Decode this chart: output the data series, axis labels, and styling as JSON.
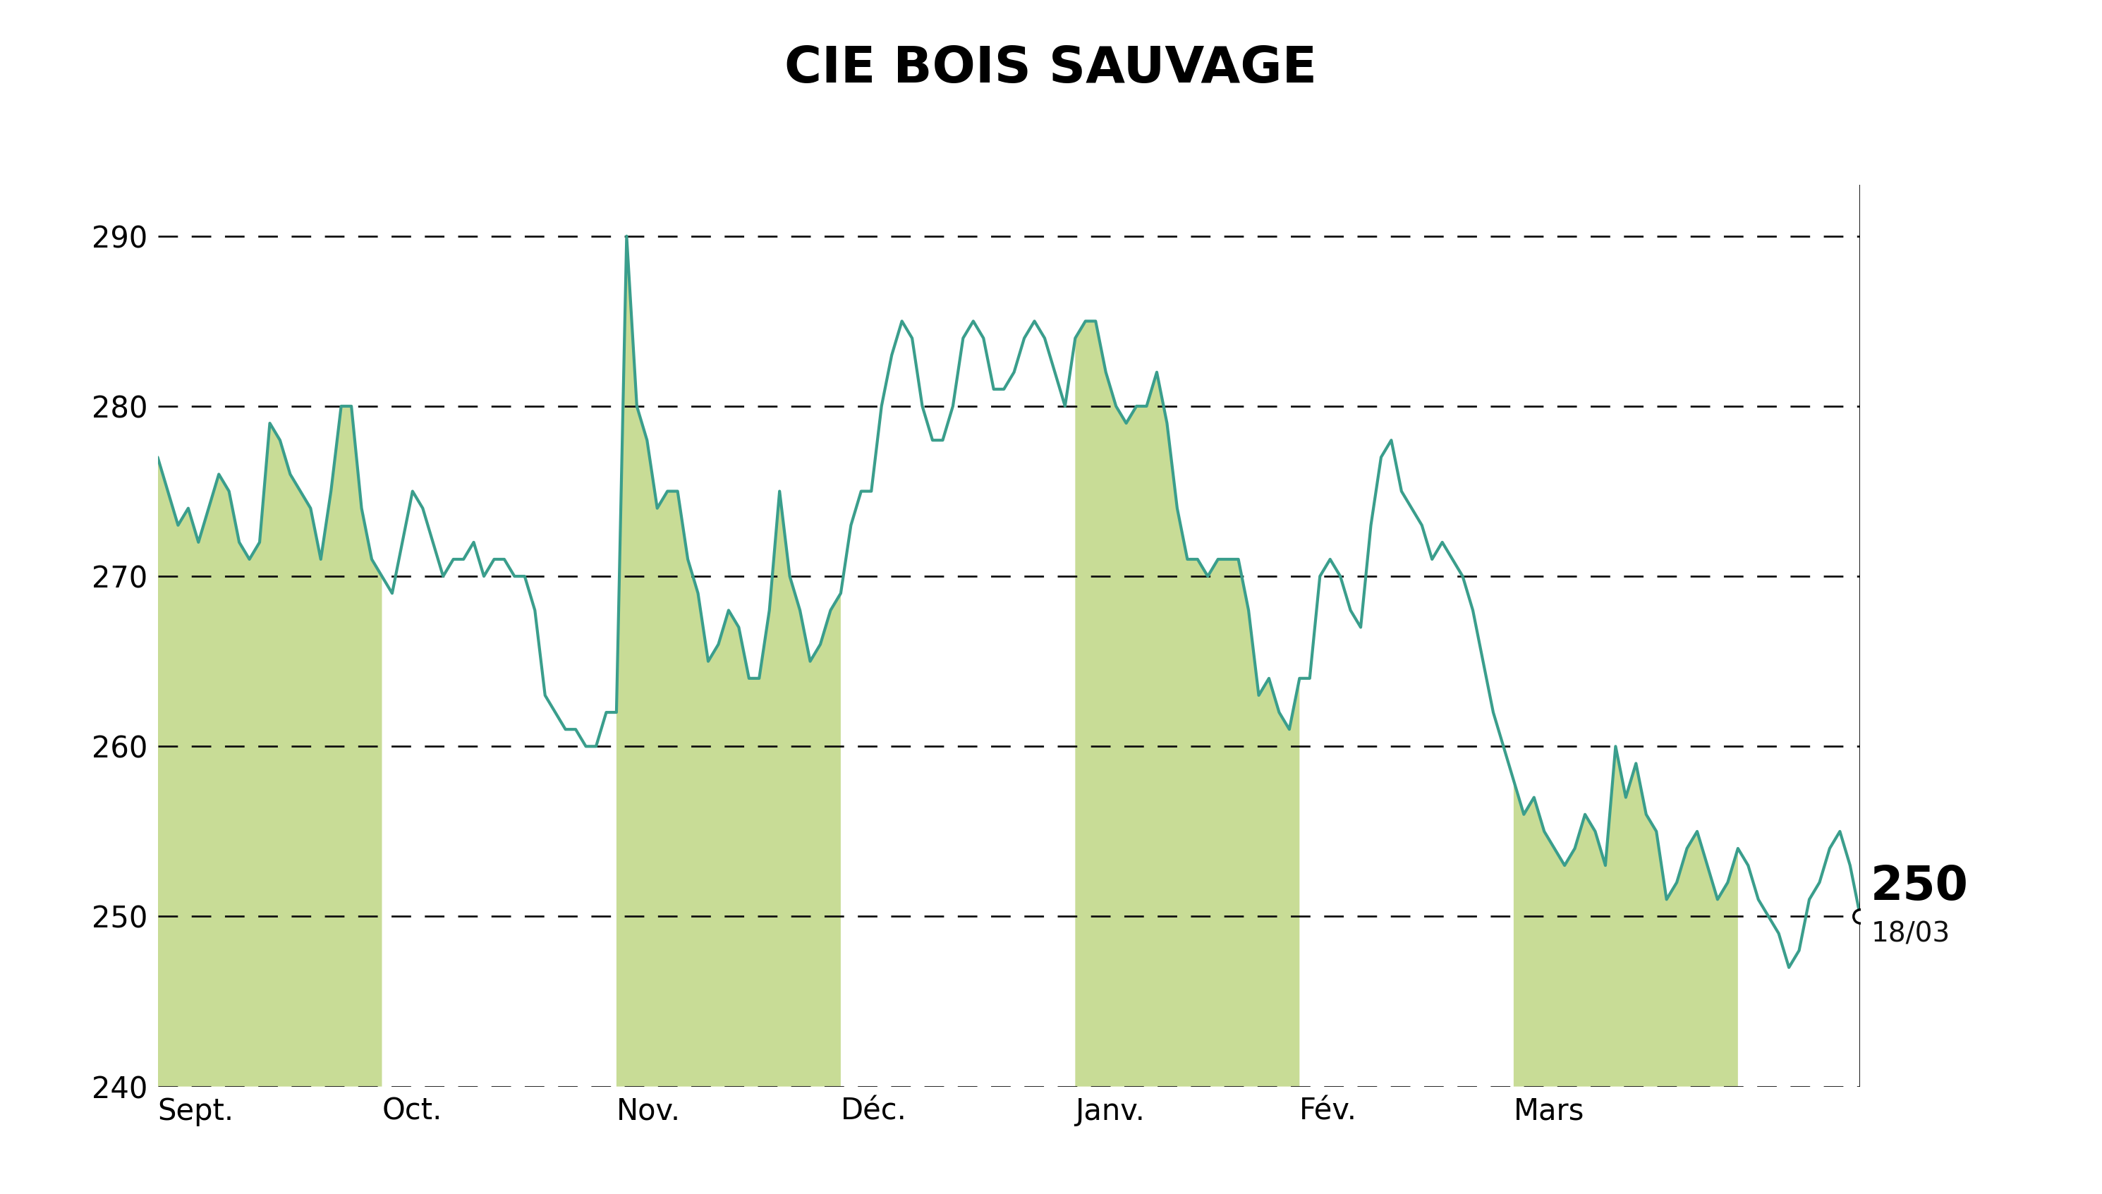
{
  "title": "CIE BOIS SAUVAGE",
  "title_bg_color": "#c8dc96",
  "plot_bg_color": "#ffffff",
  "line_color": "#3a9e8c",
  "fill_color": "#c8dc96",
  "grid_color": "#111111",
  "ylim": [
    240,
    293
  ],
  "yticks": [
    240,
    250,
    260,
    270,
    280,
    290
  ],
  "month_labels": [
    "Sept.",
    "Oct.",
    "Nov.",
    "Déc.",
    "Janv.",
    "Fév.",
    "Mars"
  ],
  "last_value": 250,
  "last_date": "18/03",
  "line_width": 3.0,
  "prices": [
    277,
    275,
    273,
    274,
    272,
    274,
    276,
    275,
    272,
    271,
    272,
    279,
    278,
    276,
    275,
    274,
    271,
    275,
    280,
    280,
    274,
    271,
    270,
    269,
    272,
    275,
    274,
    272,
    270,
    271,
    271,
    272,
    270,
    271,
    271,
    270,
    270,
    268,
    263,
    262,
    261,
    261,
    260,
    260,
    262,
    262,
    290,
    280,
    278,
    274,
    275,
    275,
    271,
    269,
    265,
    266,
    268,
    267,
    264,
    264,
    268,
    275,
    270,
    268,
    265,
    266,
    268,
    269,
    273,
    275,
    275,
    280,
    283,
    285,
    284,
    280,
    278,
    278,
    280,
    284,
    285,
    284,
    281,
    281,
    282,
    284,
    285,
    284,
    282,
    280,
    284,
    285,
    285,
    282,
    280,
    279,
    280,
    280,
    282,
    279,
    274,
    271,
    271,
    270,
    271,
    271,
    271,
    268,
    263,
    264,
    262,
    261,
    264,
    264,
    270,
    271,
    270,
    268,
    267,
    273,
    277,
    278,
    275,
    274,
    273,
    271,
    272,
    271,
    270,
    268,
    265,
    262,
    260,
    258,
    256,
    257,
    255,
    254,
    253,
    254,
    256,
    255,
    253,
    260,
    257,
    259,
    256,
    255,
    251,
    252,
    254,
    255,
    253,
    251,
    252,
    254,
    253,
    251,
    250,
    249,
    247,
    248,
    251,
    252,
    254,
    255,
    253,
    250
  ],
  "month_boundaries_x": [
    0,
    22,
    45,
    67,
    90,
    112,
    133,
    155
  ],
  "shaded_months": [
    0,
    2,
    4,
    6
  ],
  "font_size_title": 52,
  "font_size_ytick": 30,
  "font_size_xtick": 30,
  "font_size_annotation_value": 48,
  "font_size_annotation_date": 28
}
